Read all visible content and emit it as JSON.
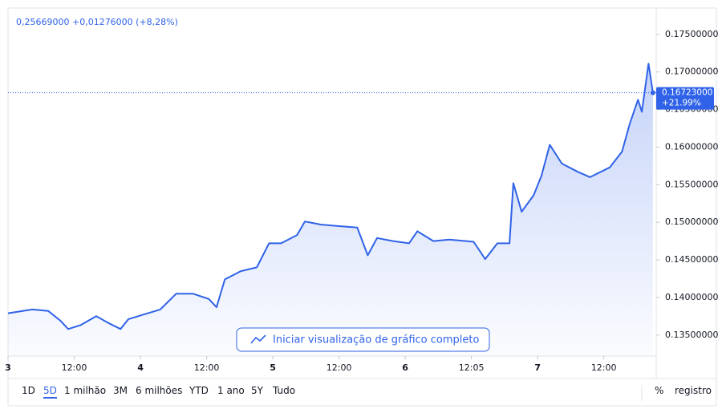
{
  "chart_data": {
    "type": "area",
    "header": "0,25669000 +0,01276000 (+8,28%)",
    "x": [
      0,
      4.4,
      7.3,
      9.5,
      10.9,
      13.1,
      16,
      18.2,
      20.4,
      21.8,
      24,
      27.6,
      30.5,
      33.5,
      36.4,
      37.8,
      39.3,
      42.2,
      45.1,
      47.3,
      49.5,
      52.4,
      53.8,
      56.7,
      59.6,
      63.3,
      65.2,
      66.9,
      69.8,
      72.7,
      74.2,
      77.1,
      80,
      84.4,
      86.5,
      88.7,
      90.9,
      91.6,
      93.1,
      95.3,
      96.7,
      98.2,
      100.4,
      103.3,
      105.5,
      109.1,
      111.3,
      112.7,
      114.2,
      114.9,
      116.1,
      116.9
    ],
    "series": [
      {
        "color": "#2f62e8",
        "values": [
          0.1379,
          0.1384,
          0.1382,
          0.1369,
          0.1358,
          0.1363,
          0.1375,
          0.1366,
          0.1358,
          0.1371,
          0.1376,
          0.1384,
          0.1405,
          0.1405,
          0.1398,
          0.1387,
          0.1424,
          0.1435,
          0.144,
          0.1472,
          0.1472,
          0.1483,
          0.1501,
          0.1497,
          0.1495,
          0.1493,
          0.1456,
          0.1479,
          0.1475,
          0.1472,
          0.1488,
          0.1475,
          0.1477,
          0.1474,
          0.1451,
          0.1472,
          0.1472,
          0.1552,
          0.1514,
          0.1536,
          0.1562,
          0.1603,
          0.1578,
          0.1567,
          0.156,
          0.1573,
          0.1594,
          0.1631,
          0.1663,
          0.1647,
          0.1711,
          0.16723
        ]
      }
    ],
    "xlim": [
      0,
      117.5
    ],
    "ylim": [
      0.1322,
      0.1785
    ],
    "yticks": [
      {
        "value": 0.135,
        "label": "0.13500000"
      },
      {
        "value": 0.14,
        "label": "0.14000000"
      },
      {
        "value": 0.145,
        "label": "0.14500000"
      },
      {
        "value": 0.15,
        "label": "0.15000000"
      },
      {
        "value": 0.155,
        "label": "0.15500000"
      },
      {
        "value": 0.16,
        "label": "0.16000000"
      },
      {
        "value": 0.165,
        "label": "0.16500000"
      },
      {
        "value": 0.17,
        "label": "0.17000000"
      },
      {
        "value": 0.175,
        "label": "0.17500000"
      }
    ],
    "xticks": [
      {
        "value": 0,
        "label": "3"
      },
      {
        "value": 12,
        "label": "12:00"
      },
      {
        "value": 24,
        "label": "4"
      },
      {
        "value": 36,
        "label": "12:00"
      },
      {
        "value": 48,
        "label": "5"
      },
      {
        "value": 60,
        "label": "12:00"
      },
      {
        "value": 72,
        "label": "6"
      },
      {
        "value": 84,
        "label": "12:05"
      },
      {
        "value": 96,
        "label": "7"
      },
      {
        "value": 108,
        "label": "12:00"
      }
    ],
    "price_label": {
      "value": 0.16723,
      "label": "0.16723000",
      "change": "+21.99%"
    },
    "button": "Iniciar visualização de gráfico completo",
    "ranges": [
      "1D",
      "5D",
      "1 milhão",
      "3M",
      "6 milhões",
      "YTD",
      "1 ano",
      "5Y",
      "Tudo"
    ],
    "active_range": 1,
    "percent": "%",
    "log": "registro"
  }
}
